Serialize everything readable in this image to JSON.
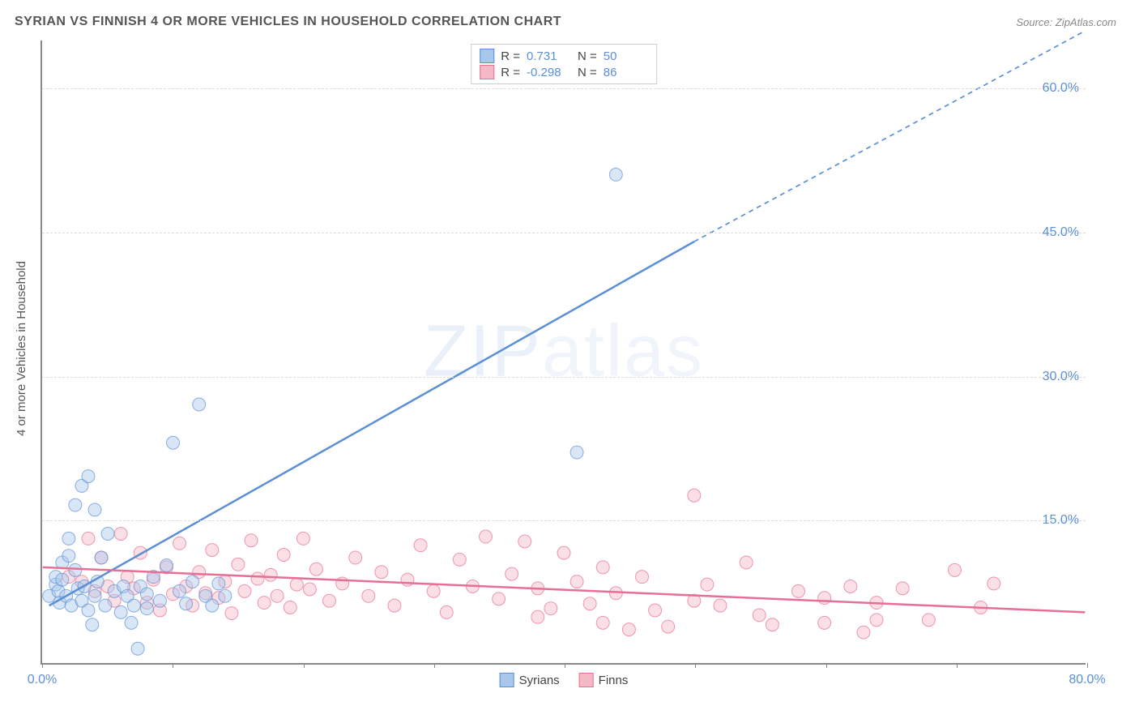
{
  "title": "SYRIAN VS FINNISH 4 OR MORE VEHICLES IN HOUSEHOLD CORRELATION CHART",
  "source": "Source: ZipAtlas.com",
  "watermark_bold": "ZIP",
  "watermark_thin": "atlas",
  "y_axis_label": "4 or more Vehicles in Household",
  "chart": {
    "type": "scatter",
    "background_color": "#ffffff",
    "grid_color": "#dddddd",
    "axis_color": "#888888",
    "label_color": "#5b8fd6",
    "xlim": [
      0,
      80
    ],
    "ylim": [
      0,
      65
    ],
    "x_ticks": [
      0,
      10,
      20,
      30,
      40,
      50,
      60,
      70,
      80
    ],
    "x_tick_labels": {
      "0": "0.0%",
      "80": "80.0%"
    },
    "y_ticks": [
      15,
      30,
      45,
      60
    ],
    "y_tick_labels": {
      "15": "15.0%",
      "30": "30.0%",
      "45": "45.0%",
      "60": "60.0%"
    },
    "marker_radius": 8,
    "marker_opacity": 0.45,
    "line_width": 2.5,
    "series": [
      {
        "name": "Syrians",
        "color_fill": "#a9c7ea",
        "color_stroke": "#5b8fd6",
        "r_label": "R =",
        "r_value": "0.731",
        "n_label": "N =",
        "n_value": "50",
        "trend": {
          "x1": 0.5,
          "y1": 6,
          "x2": 50,
          "y2": 44,
          "x2_dash_end": 80,
          "y2_dash_end": 66
        },
        "points": [
          [
            0.5,
            7
          ],
          [
            1,
            8.2
          ],
          [
            1,
            9
          ],
          [
            1.2,
            7.5
          ],
          [
            1.3,
            6.3
          ],
          [
            1.5,
            8.7
          ],
          [
            1.5,
            10.5
          ],
          [
            1.8,
            7
          ],
          [
            2,
            11.2
          ],
          [
            2,
            13
          ],
          [
            2.2,
            6
          ],
          [
            2.5,
            9.7
          ],
          [
            2.5,
            16.5
          ],
          [
            2.7,
            7.8
          ],
          [
            3,
            18.5
          ],
          [
            3,
            6.5
          ],
          [
            3.2,
            8
          ],
          [
            3.5,
            5.5
          ],
          [
            3.5,
            19.5
          ],
          [
            4,
            16
          ],
          [
            4,
            7
          ],
          [
            4.2,
            8.5
          ],
          [
            4.5,
            11
          ],
          [
            4.8,
            6
          ],
          [
            5,
            13.5
          ],
          [
            5.5,
            7.5
          ],
          [
            6,
            5.3
          ],
          [
            6.2,
            8
          ],
          [
            6.5,
            7
          ],
          [
            7,
            6
          ],
          [
            7.5,
            8
          ],
          [
            8,
            7.2
          ],
          [
            8,
            5.7
          ],
          [
            8.5,
            9
          ],
          [
            9,
            6.5
          ],
          [
            9.5,
            10.2
          ],
          [
            10,
            23
          ],
          [
            10.5,
            7.5
          ],
          [
            11,
            6.2
          ],
          [
            11.5,
            8.5
          ],
          [
            12,
            27
          ],
          [
            12.5,
            7
          ],
          [
            13,
            6
          ],
          [
            13.5,
            8.3
          ],
          [
            14,
            7
          ],
          [
            3.8,
            4
          ],
          [
            6.8,
            4.2
          ],
          [
            7.3,
            1.5
          ],
          [
            44,
            51
          ],
          [
            41,
            22
          ]
        ]
      },
      {
        "name": "Finns",
        "color_fill": "#f4b8c6",
        "color_stroke": "#e66f94",
        "r_label": "R =",
        "r_value": "-0.298",
        "n_label": "N =",
        "n_value": "86",
        "trend": {
          "x1": 0,
          "y1": 10,
          "x2": 80,
          "y2": 5.3
        },
        "points": [
          [
            2,
            9
          ],
          [
            3,
            8.5
          ],
          [
            3.5,
            13
          ],
          [
            4,
            7.5
          ],
          [
            4.5,
            11
          ],
          [
            5,
            8
          ],
          [
            5.5,
            6.5
          ],
          [
            6,
            13.5
          ],
          [
            6.5,
            9
          ],
          [
            7,
            7.8
          ],
          [
            7.5,
            11.5
          ],
          [
            8,
            6.3
          ],
          [
            8.5,
            8.7
          ],
          [
            9,
            5.5
          ],
          [
            9.5,
            10
          ],
          [
            10,
            7.2
          ],
          [
            10.5,
            12.5
          ],
          [
            11,
            8
          ],
          [
            11.5,
            6
          ],
          [
            12,
            9.5
          ],
          [
            12.5,
            7.3
          ],
          [
            13,
            11.8
          ],
          [
            13.5,
            6.8
          ],
          [
            14,
            8.5
          ],
          [
            14.5,
            5.2
          ],
          [
            15,
            10.3
          ],
          [
            15.5,
            7.5
          ],
          [
            16,
            12.8
          ],
          [
            16.5,
            8.8
          ],
          [
            17,
            6.3
          ],
          [
            17.5,
            9.2
          ],
          [
            18,
            7
          ],
          [
            18.5,
            11.3
          ],
          [
            19,
            5.8
          ],
          [
            19.5,
            8.2
          ],
          [
            20,
            13
          ],
          [
            20.5,
            7.7
          ],
          [
            21,
            9.8
          ],
          [
            22,
            6.5
          ],
          [
            23,
            8.3
          ],
          [
            24,
            11
          ],
          [
            25,
            7
          ],
          [
            26,
            9.5
          ],
          [
            27,
            6
          ],
          [
            28,
            8.7
          ],
          [
            29,
            12.3
          ],
          [
            30,
            7.5
          ],
          [
            31,
            5.3
          ],
          [
            32,
            10.8
          ],
          [
            33,
            8
          ],
          [
            34,
            13.2
          ],
          [
            35,
            6.7
          ],
          [
            36,
            9.3
          ],
          [
            37,
            12.7
          ],
          [
            38,
            7.8
          ],
          [
            39,
            5.7
          ],
          [
            40,
            11.5
          ],
          [
            41,
            8.5
          ],
          [
            42,
            6.2
          ],
          [
            43,
            10
          ],
          [
            44,
            7.3
          ],
          [
            45,
            3.5
          ],
          [
            46,
            9
          ],
          [
            48,
            3.8
          ],
          [
            50,
            17.5
          ],
          [
            51,
            8.2
          ],
          [
            52,
            6
          ],
          [
            54,
            10.5
          ],
          [
            56,
            4
          ],
          [
            58,
            7.5
          ],
          [
            60,
            4.2
          ],
          [
            62,
            8
          ],
          [
            63,
            3.2
          ],
          [
            64,
            6.3
          ],
          [
            66,
            7.8
          ],
          [
            68,
            4.5
          ],
          [
            70,
            9.7
          ],
          [
            72,
            5.8
          ],
          [
            73,
            8.3
          ],
          [
            64,
            4.5
          ],
          [
            60,
            6.8
          ],
          [
            55,
            5
          ],
          [
            50,
            6.5
          ],
          [
            47,
            5.5
          ],
          [
            43,
            4.2
          ],
          [
            38,
            4.8
          ]
        ]
      }
    ]
  },
  "bottom_legend": [
    {
      "label": "Syrians",
      "fill": "#a9c7ea",
      "stroke": "#5b8fd6"
    },
    {
      "label": "Finns",
      "fill": "#f4b8c6",
      "stroke": "#e66f94"
    }
  ]
}
